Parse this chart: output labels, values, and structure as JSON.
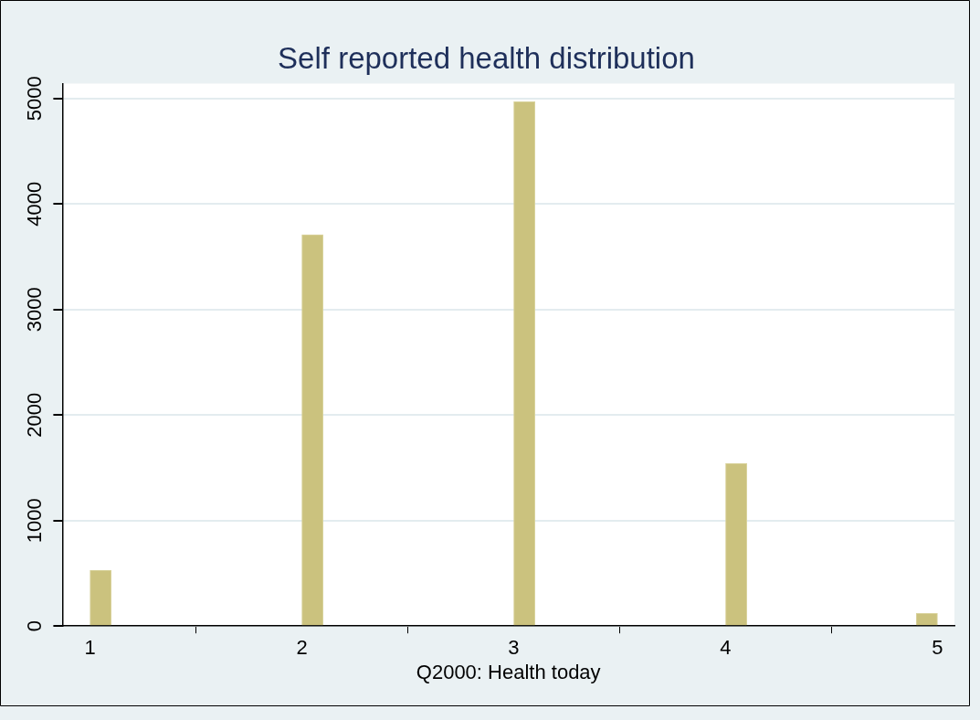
{
  "chart_data": {
    "type": "histogram",
    "title": "Self reported health distribution",
    "xlabel": "Q2000: Health today",
    "bins": [
      1,
      1.1,
      2,
      2.1,
      3,
      3.1,
      4,
      4.1,
      4.9,
      5
    ],
    "values": [
      530,
      0,
      3710,
      0,
      4970,
      0,
      1540,
      0,
      120
    ],
    "color": "#cbc27e",
    "xlim": [
      0.87,
      5.08
    ],
    "xticks": [
      1,
      2,
      3,
      4,
      5
    ],
    "ylim": [
      0,
      5140
    ],
    "yticks": [
      0,
      1000,
      2000,
      3000,
      4000,
      5000
    ],
    "grid": "y"
  }
}
